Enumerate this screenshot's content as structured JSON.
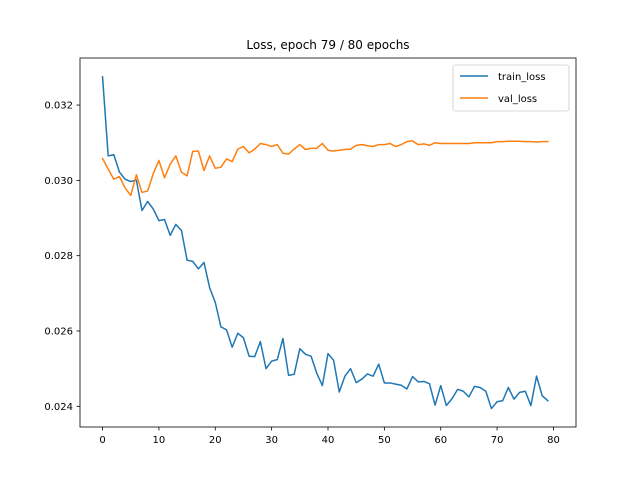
{
  "chart_data": {
    "type": "line",
    "title": "Loss, epoch 79 / 80 epochs",
    "xlabel": "",
    "ylabel": "",
    "xlim": [
      -4,
      84
    ],
    "ylim": [
      0.02345,
      0.03325
    ],
    "xticks": [
      0,
      10,
      20,
      30,
      40,
      50,
      60,
      70,
      80
    ],
    "yticks": [
      0.024,
      0.026,
      0.028,
      0.03,
      0.032
    ],
    "xtick_labels": [
      "0",
      "10",
      "20",
      "30",
      "40",
      "50",
      "60",
      "70",
      "80"
    ],
    "ytick_labels": [
      "0.024",
      "0.026",
      "0.028",
      "0.030",
      "0.032"
    ],
    "grid": false,
    "legend_position": "top-right",
    "series": [
      {
        "name": "train_loss",
        "color": "#1f77b4",
        "values": [
          0.03275,
          0.03065,
          0.03068,
          0.03022,
          0.03003,
          0.02997,
          0.03001,
          0.0292,
          0.02944,
          0.02924,
          0.02893,
          0.02896,
          0.02854,
          0.02883,
          0.02867,
          0.02788,
          0.02785,
          0.02765,
          0.02782,
          0.02715,
          0.02676,
          0.02611,
          0.02603,
          0.02557,
          0.02594,
          0.02582,
          0.02533,
          0.02532,
          0.02572,
          0.025,
          0.0252,
          0.02524,
          0.0258,
          0.02482,
          0.02485,
          0.02553,
          0.02538,
          0.02533,
          0.02488,
          0.02455,
          0.0254,
          0.02522,
          0.02438,
          0.0248,
          0.025,
          0.02463,
          0.02472,
          0.02486,
          0.0248,
          0.02512,
          0.02462,
          0.02462,
          0.02459,
          0.02456,
          0.02446,
          0.02479,
          0.02465,
          0.02466,
          0.0246,
          0.02403,
          0.02455,
          0.02402,
          0.0242,
          0.02445,
          0.0244,
          0.02425,
          0.02453,
          0.0245,
          0.0244,
          0.02394,
          0.02412,
          0.02415,
          0.0245,
          0.02419,
          0.02437,
          0.0244,
          0.02402,
          0.0248,
          0.02428,
          0.02415
        ]
      },
      {
        "name": "val_loss",
        "color": "#ff7f0e",
        "values": [
          0.03058,
          0.0303,
          0.03003,
          0.0301,
          0.0298,
          0.0296,
          0.03015,
          0.02968,
          0.02972,
          0.03018,
          0.03053,
          0.03007,
          0.03043,
          0.03065,
          0.03022,
          0.03012,
          0.03077,
          0.03078,
          0.03026,
          0.03065,
          0.03032,
          0.03035,
          0.03057,
          0.0305,
          0.03083,
          0.0309,
          0.03073,
          0.03083,
          0.03098,
          0.03095,
          0.0309,
          0.03095,
          0.03072,
          0.0307,
          0.03083,
          0.03095,
          0.03082,
          0.03085,
          0.03085,
          0.03098,
          0.0308,
          0.03078,
          0.0308,
          0.03082,
          0.03083,
          0.03093,
          0.03095,
          0.03092,
          0.0309,
          0.03095,
          0.03095,
          0.03098,
          0.0309,
          0.03095,
          0.03103,
          0.03105,
          0.03095,
          0.03097,
          0.03093,
          0.031,
          0.03098,
          0.03098,
          0.03098,
          0.03098,
          0.03098,
          0.03098,
          0.031,
          0.031,
          0.031,
          0.031,
          0.03103,
          0.03103,
          0.03104,
          0.03104,
          0.03104,
          0.03103,
          0.03103,
          0.03102,
          0.03103,
          0.03103
        ]
      }
    ]
  }
}
